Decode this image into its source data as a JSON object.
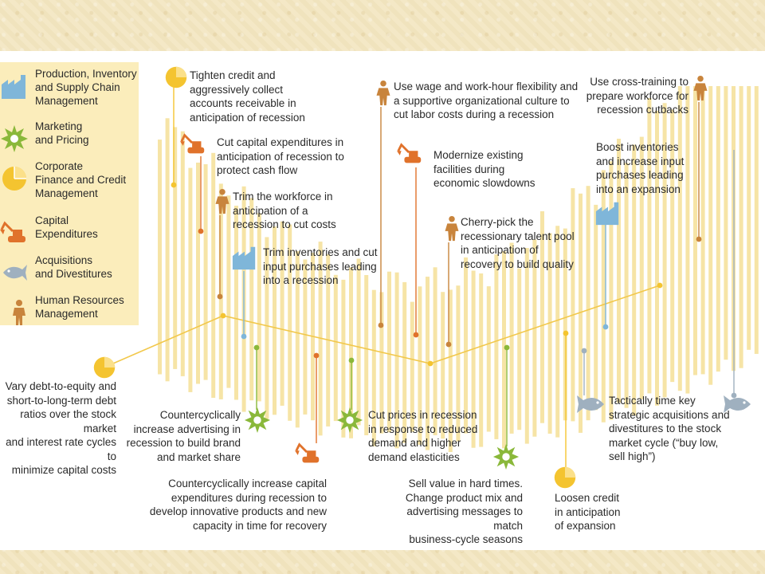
{
  "legend": {
    "items": [
      {
        "label": "Production, Inventory\nand Supply Chain\nManagement",
        "icon": "factory-icon"
      },
      {
        "label": "Marketing\nand Pricing",
        "icon": "starburst-icon"
      },
      {
        "label": "Corporate\nFinance and Credit\nManagement",
        "icon": "pie-chart-icon"
      },
      {
        "label": "Capital\nExpenditures",
        "icon": "excavator-icon"
      },
      {
        "label": "Acquisitions\nand Divestitures",
        "icon": "fish-icon"
      },
      {
        "label": "Human Resources\nManagement",
        "icon": "person-icon"
      }
    ]
  },
  "colors": {
    "finance": "#f4c430",
    "marketing": "#8ab83a",
    "capex": "#e0722b",
    "hr": "#c8843c",
    "production": "#7fb6d9",
    "acquisitions": "#9fb0bf",
    "bars": "#f6e4a6",
    "background": "#f3e7c3"
  },
  "annotations": {
    "tighten_credit": "Tighten credit and\naggressively collect\naccounts receivable in\nanticipation of recession",
    "cut_capex": "Cut capital expenditures in\nanticipation of recession to\nprotect cash flow",
    "trim_workforce": "Trim the workforce in\nanticipation of a\nrecession to cut costs",
    "trim_inventories": "Trim inventories and cut\ninput purchases leading\ninto a recession",
    "wage_flexibility": "Use wage and work-hour flexibility and\na supportive organizational culture to\ncut labor costs during a recession",
    "modernize": "Modernize existing\nfacilities during\neconomic slowdowns",
    "cherry_pick": "Cherry-pick the\nrecessionary talent pool\nin anticipation of\nrecovery to build quality",
    "cross_training": "Use cross-training to\nprepare workforce for\nrecession cutbacks",
    "boost_inventories": "Boost inventories\nand increase input\npurchases leading\ninto an expansion",
    "vary_debt": "Vary debt-to-equity and\nshort-to-long-term debt\nratios over the stock market\nand interest rate cycles to\nminimize capital costs",
    "countercyclical_advertising": "Countercyclically\nincrease advertising in\nrecession to build brand\nand market share",
    "cut_prices": "Cut prices in recession\nin response to reduced\ndemand and higher\ndemand elasticities",
    "time_acquisitions": "Tactically time key\nstrategic acquisitions and\ndivestitures to the stock\nmarket cycle (“buy low,\nsell high”)",
    "countercyclical_capex": "Countercyclically increase capital\nexpenditures during recession to\ndevelop innovative products and new\ncapacity in time for recovery",
    "sell_value": "Sell value in hard times.\nChange product mix and\nadvertising messages to match\nbusiness-cycle seasons",
    "loosen_credit": "Loosen credit\nin anticipation\nof expansion"
  }
}
